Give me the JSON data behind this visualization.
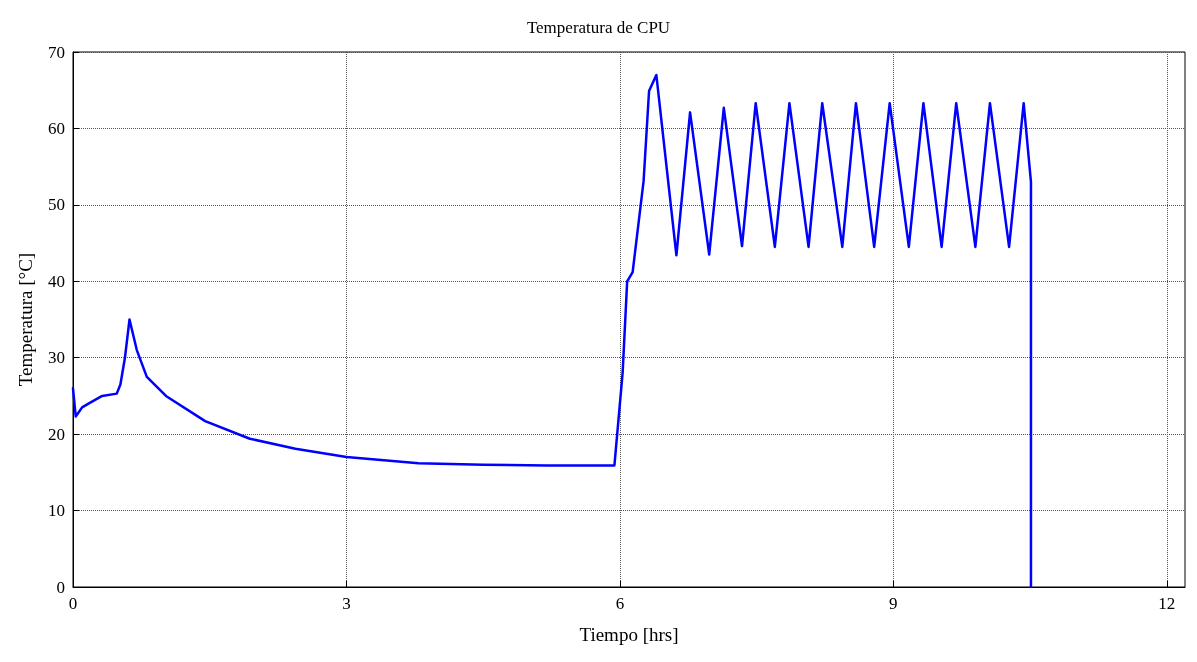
{
  "chart_data": {
    "type": "line",
    "title": "Temperatura de CPU",
    "xlabel": "Tiempo [hrs]",
    "ylabel": "Temperatura [°C]",
    "xlim": [
      0,
      12.2
    ],
    "xticks": [
      0,
      3,
      6,
      9,
      12
    ],
    "ylim": [
      0,
      70
    ],
    "yticks": [
      0,
      10,
      20,
      30,
      40,
      50,
      60,
      70
    ],
    "grid": true,
    "line_style": "solid",
    "marker": "none",
    "series": [
      {
        "color": "#0000ff",
        "x": [
          0,
          0.03,
          0.1,
          0.17,
          0.32,
          0.48,
          0.52,
          0.57,
          0.62,
          0.7,
          0.81,
          1.02,
          1.45,
          1.94,
          2.44,
          3.0,
          3.79,
          4.5,
          5.2,
          5.94,
          6.03,
          6.08,
          6.14,
          6.26,
          6.32,
          6.4,
          6.62,
          6.77,
          6.98,
          7.14,
          7.34,
          7.49,
          7.7,
          7.86,
          8.07,
          8.22,
          8.44,
          8.59,
          8.79,
          8.96,
          9.17,
          9.33,
          9.53,
          9.69,
          9.9,
          10.06,
          10.27,
          10.43,
          10.51,
          10.51
        ],
        "values": [
          26,
          22.3,
          23.5,
          24,
          25,
          25.3,
          26.5,
          30,
          35,
          31,
          27.5,
          25,
          21.7,
          19.4,
          18.1,
          17,
          16.2,
          16,
          15.9,
          15.9,
          28,
          40,
          41.2,
          53.1,
          64.9,
          67,
          43.4,
          62.1,
          43.5,
          62.7,
          44.6,
          63.3,
          44.5,
          63.3,
          44.5,
          63.3,
          44.5,
          63.3,
          44.5,
          63.3,
          44.5,
          63.3,
          44.5,
          63.3,
          44.5,
          63.3,
          44.5,
          63.3,
          53,
          0
        ]
      }
    ]
  }
}
